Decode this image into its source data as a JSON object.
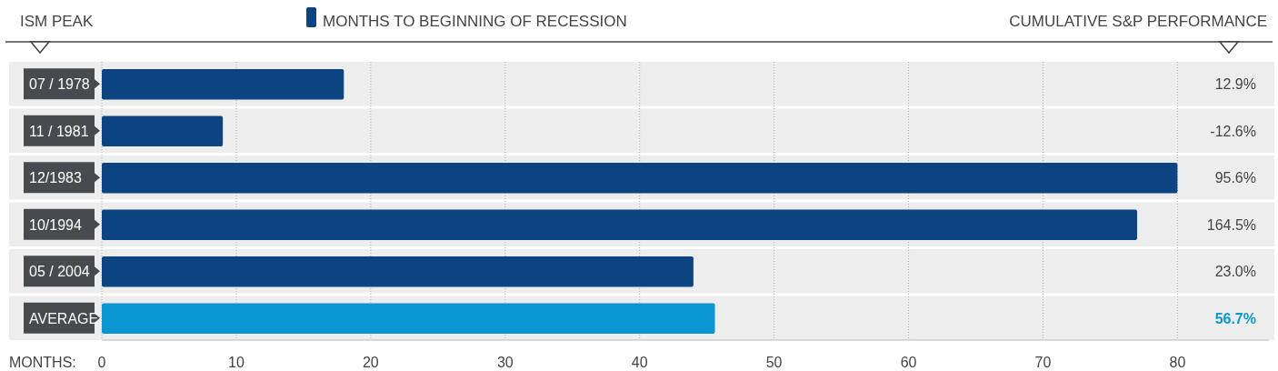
{
  "chart_data": {
    "type": "bar",
    "orientation": "horizontal",
    "ylabel": "ISM PEAK",
    "y2label": "CUMULATIVE S&P PERFORMANCE",
    "xlabel": "MONTHS:",
    "categories": [
      "07 / 1978",
      "11 / 1981",
      "12/1983",
      "10/1994",
      "05 / 2004",
      "AVERAGE"
    ],
    "series": [
      {
        "name": "MONTHS TO BEGINNING OF RECESSION",
        "color": "#0b4480",
        "values": [
          18,
          9,
          80,
          77,
          44,
          45.6
        ],
        "colors": [
          "#0b4480",
          "#0b4480",
          "#0b4480",
          "#0b4480",
          "#0b4480",
          "#0a96d3"
        ]
      }
    ],
    "xlim": [
      0,
      86.8
    ],
    "xticks": [
      0,
      10,
      20,
      30,
      40,
      50,
      60,
      70,
      80
    ],
    "grid": "x",
    "legend": "top",
    "annotations": [
      "12.9%",
      "-12.6%",
      "95.6%",
      "164.5%",
      "23.0%",
      "56.7%"
    ]
  }
}
